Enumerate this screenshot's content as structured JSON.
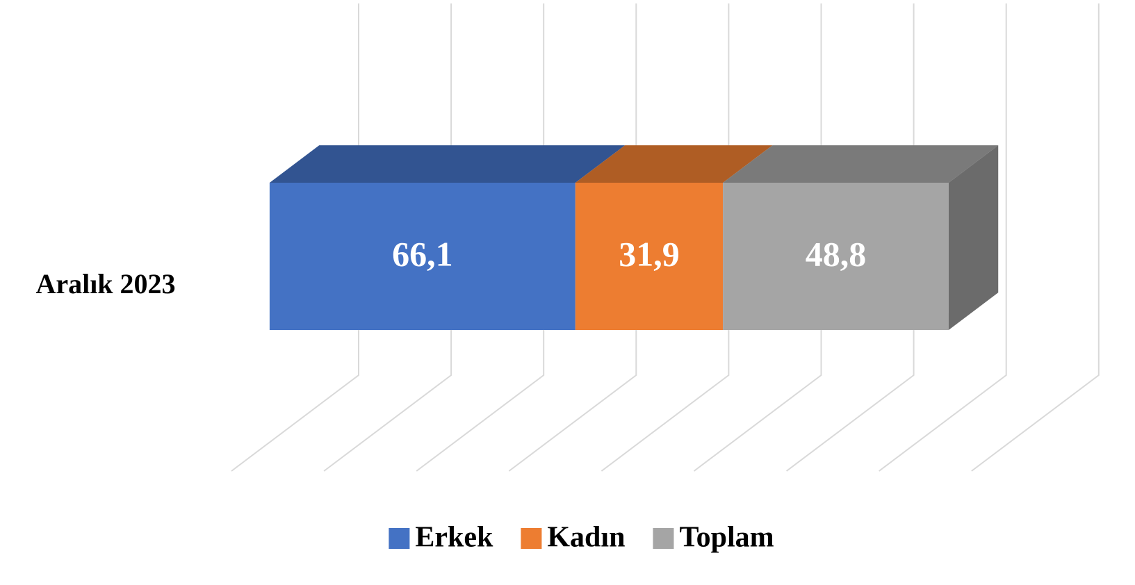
{
  "chart_data": {
    "type": "bar",
    "orientation": "horizontal",
    "stacked": true,
    "three_d": true,
    "categories": [
      "Aralık 2023"
    ],
    "series": [
      {
        "name": "Erkek",
        "color": "#4472c4",
        "values": [
          66.1
        ],
        "value_labels": [
          "66,1"
        ]
      },
      {
        "name": "Kadın",
        "color": "#ed7d31",
        "values": [
          31.9
        ],
        "value_labels": [
          "31,9"
        ]
      },
      {
        "name": "Toplam",
        "color": "#a5a5a5",
        "values": [
          48.8
        ],
        "value_labels": [
          "48,8"
        ]
      }
    ],
    "xlim": [
      0,
      160
    ],
    "xticks": [
      0,
      20,
      40,
      60,
      80,
      100,
      120,
      140,
      160
    ],
    "grid": true,
    "legend": "bottom"
  }
}
